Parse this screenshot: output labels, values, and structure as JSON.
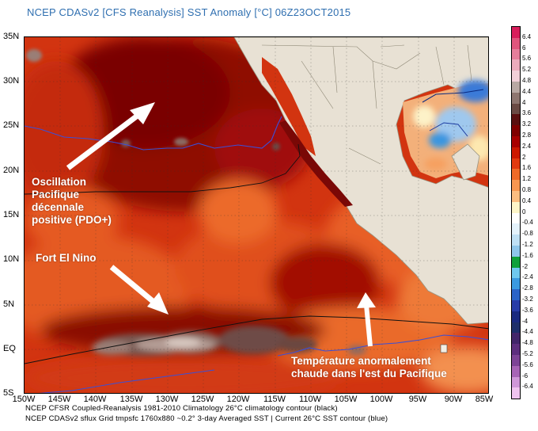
{
  "title": "NCEP CDASv2 [CFS Reanalysis] SST Anomaly [°C] 06Z23OCT2015",
  "lat_labels": [
    "35N",
    "30N",
    "25N",
    "20N",
    "15N",
    "10N",
    "5N",
    "EQ",
    "5S"
  ],
  "lon_labels": [
    "150W",
    "145W",
    "140W",
    "135W",
    "130W",
    "125W",
    "120W",
    "115W",
    "110W",
    "105W",
    "100W",
    "95W",
    "90W",
    "85W"
  ],
  "footer": [
    "NCEP CFSR Coupled-Reanalysis 1981-2010 Climatology  26°C climatology contour (black)",
    "NCEP CDASv2 sflux Grid tmpsfc 1760x880 ~0.2°     3-day Averaged SST | Current 26°C SST contour (blue)"
  ],
  "annotations": {
    "pdo": [
      "Oscillation",
      "Pacifique",
      "décennale",
      "positive (PDO+)"
    ],
    "elnino": "Fort El Nino",
    "east": [
      "Température anormalement",
      "chaude dans l'est du Pacifique"
    ]
  },
  "colorbar": {
    "labels": [
      "6.4",
      "6",
      "5.6",
      "5.2",
      "4.8",
      "4.4",
      "4",
      "3.6",
      "3.2",
      "2.8",
      "2.4",
      "2",
      "1.6",
      "1.2",
      "0.8",
      "0.4",
      "0",
      "-0.4",
      "-0.8",
      "-1.2",
      "-1.6",
      "-2",
      "-2.4",
      "-2.8",
      "-3.2",
      "-3.6",
      "-4",
      "-4.4",
      "-4.8",
      "-5.2",
      "-5.6",
      "-6",
      "-6.4"
    ],
    "colors": [
      "#d81e5b",
      "#e0557d",
      "#e67e9b",
      "#ecabbc",
      "#f1cfd8",
      "#b8a8a3",
      "#8e7670",
      "#6a4a44",
      "#5a1010",
      "#800000",
      "#a80000",
      "#cc1800",
      "#e23a10",
      "#f06a28",
      "#f79650",
      "#fbbd80",
      "#fdf5c8",
      "#ffffff",
      "#e4f2fb",
      "#bfe0f4",
      "#8ec6ea",
      "#0fa03a",
      "#6fc8ee",
      "#3b9ae0",
      "#2b64c8",
      "#283ca8",
      "#1a2a80",
      "#1e2f6a",
      "#42266a",
      "#5d2f7e",
      "#7d4496",
      "#a764b6",
      "#cf97d8",
      "#efc3ef"
    ]
  }
}
